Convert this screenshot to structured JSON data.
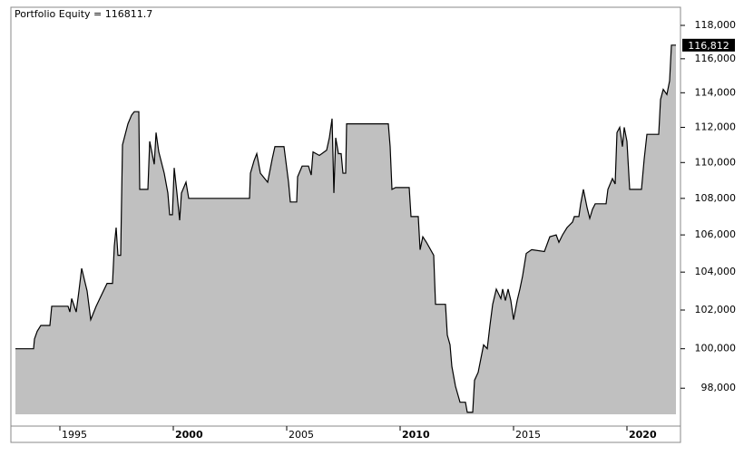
{
  "chart_data": {
    "type": "area",
    "title": "Portfolio Equity = 116811.7",
    "series": [
      {
        "name": "Portfolio Equity",
        "color": "#c0c0c0",
        "line_color": "#000000",
        "x": [
          1993.04,
          1993.84,
          1993.88,
          1994.0,
          1994.16,
          1994.56,
          1994.64,
          1995.36,
          1995.44,
          1995.52,
          1995.72,
          1995.84,
          1995.96,
          1996.08,
          1996.2,
          1996.36,
          1996.6,
          1996.84,
          1997.08,
          1997.32,
          1997.4,
          1997.48,
          1997.56,
          1997.68,
          1997.76,
          1998.0,
          1998.16,
          1998.28,
          1998.48,
          1998.52,
          1998.88,
          1998.96,
          1999.16,
          1999.24,
          1999.36,
          1999.6,
          1999.76,
          1999.84,
          1999.96,
          2000.04,
          2000.16,
          2000.28,
          2000.36,
          2000.56,
          2000.68,
          2003.36,
          2003.4,
          2003.56,
          2003.68,
          2003.84,
          2004.16,
          2004.36,
          2004.48,
          2004.88,
          2005.08,
          2005.16,
          2005.44,
          2005.48,
          2005.68,
          2005.96,
          2006.08,
          2006.16,
          2006.44,
          2006.76,
          2006.88,
          2007.0,
          2007.08,
          2007.16,
          2007.28,
          2007.4,
          2007.48,
          2007.6,
          2007.64,
          2009.48,
          2009.56,
          2009.64,
          2009.8,
          2010.4,
          2010.48,
          2010.8,
          2010.88,
          2011.0,
          2011.16,
          2011.48,
          2011.56,
          2012.0,
          2012.08,
          2012.2,
          2012.28,
          2012.44,
          2012.64,
          2012.88,
          2012.96,
          2013.2,
          2013.28,
          2013.44,
          2013.56,
          2013.68,
          2013.84,
          2013.96,
          2014.08,
          2014.24,
          2014.44,
          2014.52,
          2014.64,
          2014.76,
          2014.88,
          2015.0,
          2015.16,
          2015.28,
          2015.4,
          2015.56,
          2015.8,
          2016.36,
          2016.6,
          2016.88,
          2017.0,
          2017.16,
          2017.36,
          2017.6,
          2017.68,
          2017.88,
          2017.96,
          2018.08,
          2018.24,
          2018.36,
          2018.48,
          2018.6,
          2019.08,
          2019.16,
          2019.36,
          2019.48,
          2019.56,
          2019.68,
          2019.8,
          2019.88,
          2020.0,
          2020.12,
          2020.64,
          2020.76,
          2020.88,
          2021.4,
          2021.48,
          2021.6,
          2021.76,
          2021.88,
          2021.96,
          2022.16
        ],
        "values": [
          100000,
          100000,
          100500,
          100900,
          101200,
          101200,
          102200,
          102200,
          101900,
          102600,
          101900,
          103000,
          104200,
          103600,
          103000,
          101500,
          102200,
          102800,
          103400,
          103400,
          105400,
          106400,
          104900,
          104900,
          111000,
          112200,
          112700,
          112900,
          112900,
          108500,
          108500,
          111200,
          109900,
          111700,
          110600,
          109400,
          108300,
          107100,
          107100,
          109700,
          108300,
          106800,
          108300,
          108900,
          108000,
          108000,
          109400,
          110100,
          110500,
          109400,
          108900,
          110200,
          110900,
          110900,
          108900,
          107800,
          107800,
          109200,
          109800,
          109800,
          109300,
          110600,
          110400,
          110700,
          111400,
          112500,
          108300,
          111400,
          110500,
          110500,
          109400,
          109400,
          112200,
          112200,
          110900,
          108500,
          108600,
          108600,
          107000,
          107000,
          105200,
          105900,
          105600,
          104900,
          102300,
          102300,
          100700,
          100200,
          99100,
          98100,
          97300,
          97300,
          96800,
          96800,
          98400,
          98800,
          99500,
          100200,
          100000,
          101200,
          102300,
          103100,
          102600,
          103100,
          102500,
          103100,
          102500,
          101500,
          102500,
          103100,
          103800,
          105000,
          105200,
          105100,
          105900,
          106000,
          105600,
          106000,
          106400,
          106700,
          107000,
          107000,
          107700,
          108500,
          107500,
          106900,
          107400,
          107700,
          107700,
          108500,
          109100,
          108800,
          111700,
          112000,
          110900,
          112000,
          111200,
          108500,
          108500,
          110200,
          111600,
          111600,
          113600,
          114200,
          113900,
          114700,
          116811.7,
          116811.7
        ]
      }
    ],
    "last_value_label": "116,812",
    "xlim": [
      1992.84,
      2022.36
    ],
    "xticks": [
      1995,
      2000,
      2005,
      2010,
      2015,
      2020
    ],
    "ylim": [
      96700,
      119100
    ],
    "log_scale": true,
    "yticks": [
      {
        "value": 98000,
        "label": "98,000"
      },
      {
        "value": 100000,
        "label": "100,000"
      },
      {
        "value": 102000,
        "label": "102,000"
      },
      {
        "value": 104000,
        "label": "104,000"
      },
      {
        "value": 106000,
        "label": "106,000"
      },
      {
        "value": 108000,
        "label": "108,000"
      },
      {
        "value": 110000,
        "label": "110,000"
      },
      {
        "value": 112000,
        "label": "112,000"
      },
      {
        "value": 114000,
        "label": "114,000"
      },
      {
        "value": 116000,
        "label": "116,000"
      },
      {
        "value": 118000,
        "label": "118,000"
      }
    ]
  }
}
